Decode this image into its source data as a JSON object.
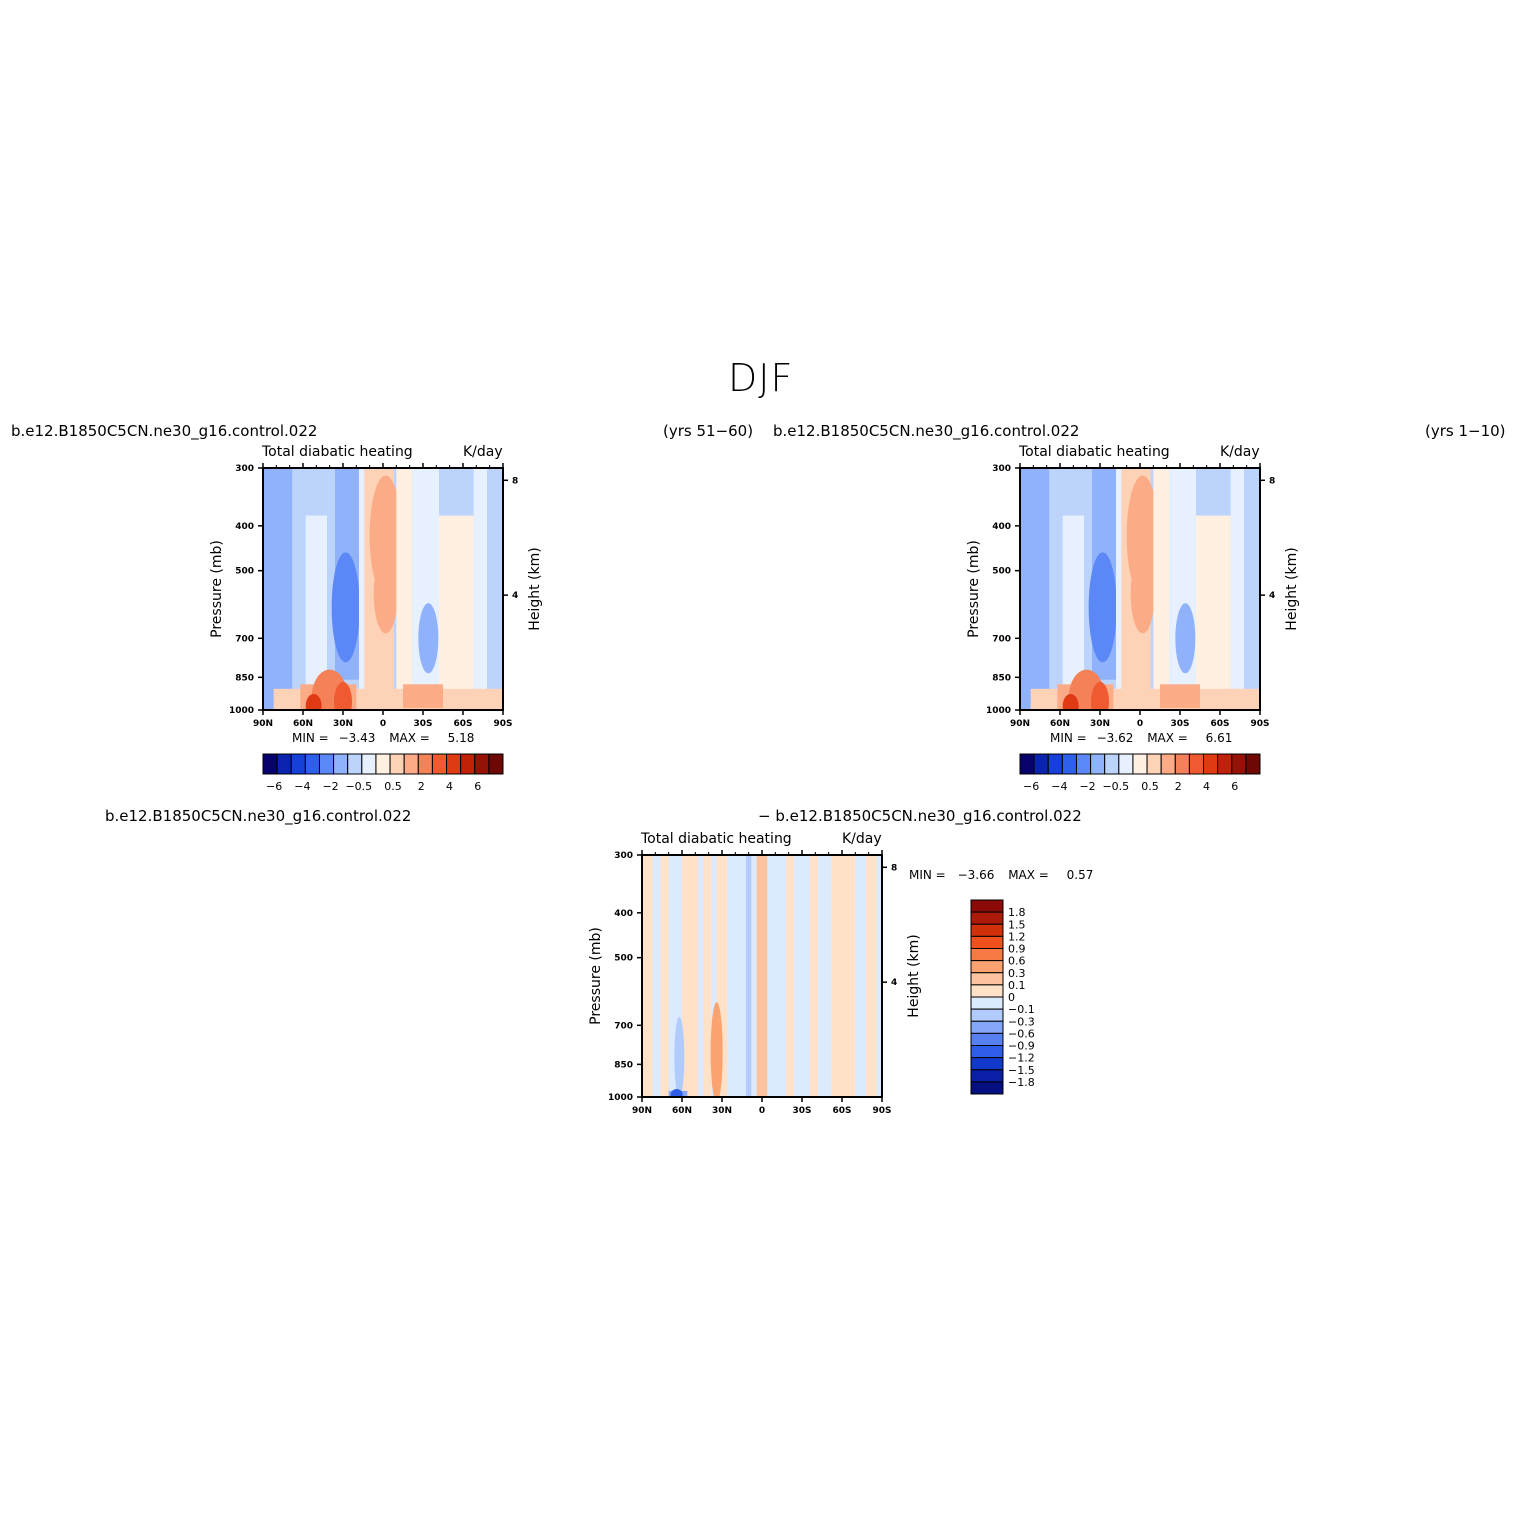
{
  "figure": {
    "title": "DJF"
  },
  "panels": [
    {
      "case": "b.e12.B1850C5CN.ne30_g16.control.022",
      "period": "(yrs 51−60)",
      "variable": "Total diabatic heating",
      "units": "K/day",
      "min_label": "MIN =",
      "min_value": "−3.43",
      "max_label": "MAX =",
      "max_value": "5.18"
    },
    {
      "case": "b.e12.B1850C5CN.ne30_g16.control.022",
      "period": "(yrs 1−10)",
      "variable": "Total diabatic heating",
      "units": "K/day",
      "min_label": "MIN =",
      "min_value": "−3.62",
      "max_label": "MAX =",
      "max_value": "6.61"
    },
    {
      "case_left": "b.e12.B1850C5CN.ne30_g16.control.022",
      "case_right": "− b.e12.B1850C5CN.ne30_g16.control.022",
      "variable": "Total diabatic heating",
      "units": "K/day",
      "min_label": "MIN =",
      "min_value": "−3.66",
      "max_label": "MAX =",
      "max_value": "0.57"
    }
  ],
  "axes": {
    "ylabel": "Pressure (mb)",
    "y2label": "Height (km)",
    "pressure_ticks": [
      "300",
      "400",
      "500",
      "700",
      "850",
      "1000"
    ],
    "pressure_values": [
      300,
      400,
      500,
      700,
      850,
      1000
    ],
    "height_ticks": [
      "8",
      "4"
    ],
    "height_values": [
      8,
      4
    ],
    "lat_ticks": [
      "90N",
      "60N",
      "30N",
      "0",
      "30S",
      "60S",
      "90S"
    ],
    "lat_values": [
      90,
      60,
      30,
      0,
      -30,
      -60,
      -90
    ]
  },
  "colorbars": {
    "abs_labels": [
      "−6",
      "−4",
      "−2",
      "−0.5",
      "0.5",
      "2",
      "4",
      "6"
    ],
    "abs_colors": [
      "#08036b",
      "#0b24b0",
      "#1541d8",
      "#2e60ee",
      "#5b87f7",
      "#8fb2fb",
      "#bcd3fc",
      "#e6f0fe",
      "#fff0e2",
      "#fdd2b6",
      "#fbac86",
      "#f58158",
      "#ef5a31",
      "#e03a14",
      "#c02208",
      "#951206",
      "#6e0804"
    ],
    "diff_labels": [
      "1.8",
      "1.5",
      "1.2",
      "0.9",
      "0.6",
      "0.3",
      "0.1",
      "0",
      "−0.1",
      "−0.3",
      "−0.6",
      "−0.9",
      "−1.2",
      "−1.5",
      "−1.8"
    ],
    "diff_colors": [
      "#8a0b08",
      "#ae1a0a",
      "#d2300b",
      "#f0501d",
      "#f77a45",
      "#fba271",
      "#fdc39f",
      "#ffe1c8",
      "#dbeafe",
      "#b1cbfc",
      "#84a6f8",
      "#5780f2",
      "#2f5ce8",
      "#1238cc",
      "#0a1ea6",
      "#050f80"
    ]
  },
  "chart_data": [
    {
      "type": "heatmap",
      "title": "Total diabatic heating",
      "units": "K/day",
      "xlabel": "",
      "ylabel": "Pressure (mb)",
      "x_range": [
        90,
        -90
      ],
      "y_range": [
        1000,
        300
      ],
      "levels": [
        -6,
        -5,
        -4,
        -3,
        -2,
        -1,
        -0.5,
        0,
        0.5,
        1,
        2,
        3,
        4,
        5,
        6
      ],
      "min": -3.43,
      "max": 5.18
    },
    {
      "type": "heatmap",
      "title": "Total diabatic heating",
      "units": "K/day",
      "xlabel": "",
      "ylabel": "Pressure (mb)",
      "x_range": [
        90,
        -90
      ],
      "y_range": [
        1000,
        300
      ],
      "levels": [
        -6,
        -5,
        -4,
        -3,
        -2,
        -1,
        -0.5,
        0,
        0.5,
        1,
        2,
        3,
        4,
        5,
        6
      ],
      "min": -3.62,
      "max": 6.61
    },
    {
      "type": "heatmap",
      "title": "Total diabatic heating",
      "units": "K/day",
      "xlabel": "",
      "ylabel": "Pressure (mb)",
      "x_range": [
        90,
        -90
      ],
      "y_range": [
        1000,
        300
      ],
      "levels": [
        -1.8,
        -1.5,
        -1.2,
        -0.9,
        -0.6,
        -0.3,
        -0.1,
        0,
        0.1,
        0.3,
        0.6,
        0.9,
        1.2,
        1.5,
        1.8
      ],
      "min": -3.66,
      "max": 0.57
    }
  ]
}
